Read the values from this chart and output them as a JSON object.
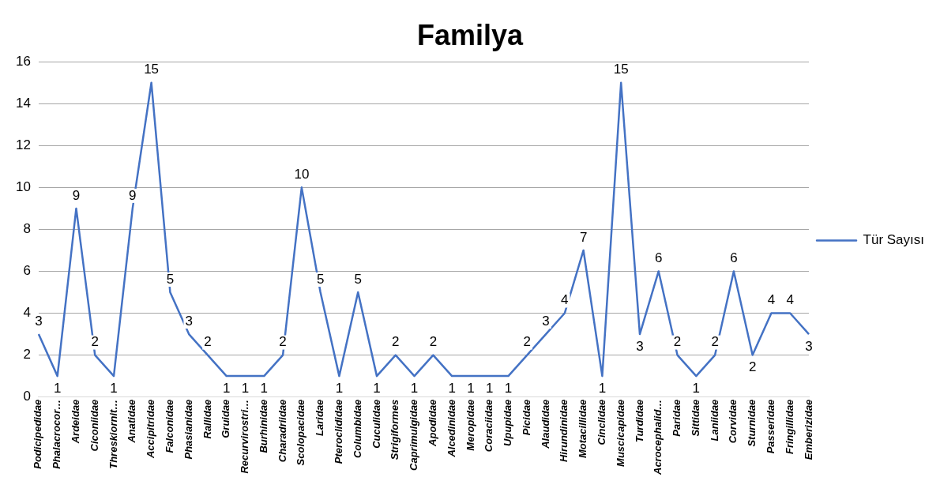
{
  "chart_data": {
    "type": "line",
    "title": "Familya",
    "categories": [
      "Podicipedidae",
      "Phalacrocor…",
      "Ardeidae",
      "Ciconiidae",
      "Threskiornit…",
      "Anatidae",
      "Accipitridae",
      "Falconidae",
      "Phasianidae",
      "Rallidae",
      "Gruidae",
      "Recurvirostri…",
      "Burhinidae",
      "Charadriidae",
      "Scolopacidae",
      "Laridae",
      "Pteroclididae",
      "Columbidae",
      "Cuculidae",
      "Strigiformes",
      "Caprimulgidae",
      "Apodidae",
      "Alcedinidae",
      "Meropidae",
      "Coraciidae",
      "Upupidae",
      "Picidae",
      "Alaudidae",
      "Hirundinidae",
      "Motacillidae",
      "Cinclidae",
      "Muscicapidae",
      "Turdidae",
      "Acrocephalid…",
      "Paridae",
      "Sittidae",
      "Laniidae",
      "Corvidae",
      "Sturnidae",
      "Passeridae",
      "Fringillidae",
      "Emberizidae"
    ],
    "series": [
      {
        "name": "Tür Sayısı",
        "color": "#4472c4",
        "values": [
          3,
          1,
          9,
          2,
          1,
          9,
          15,
          5,
          3,
          2,
          1,
          1,
          1,
          2,
          10,
          5,
          1,
          5,
          1,
          2,
          1,
          2,
          1,
          1,
          1,
          1,
          2,
          3,
          4,
          7,
          1,
          15,
          3,
          6,
          2,
          1,
          2,
          6,
          2,
          4,
          4,
          3
        ]
      }
    ],
    "ylim": [
      0,
      16
    ],
    "yticks": [
      0,
      2,
      4,
      6,
      8,
      10,
      12,
      14,
      16
    ],
    "grid": "y",
    "legend": "right",
    "marker": "none",
    "line_style": "solid",
    "data_labels": true
  }
}
